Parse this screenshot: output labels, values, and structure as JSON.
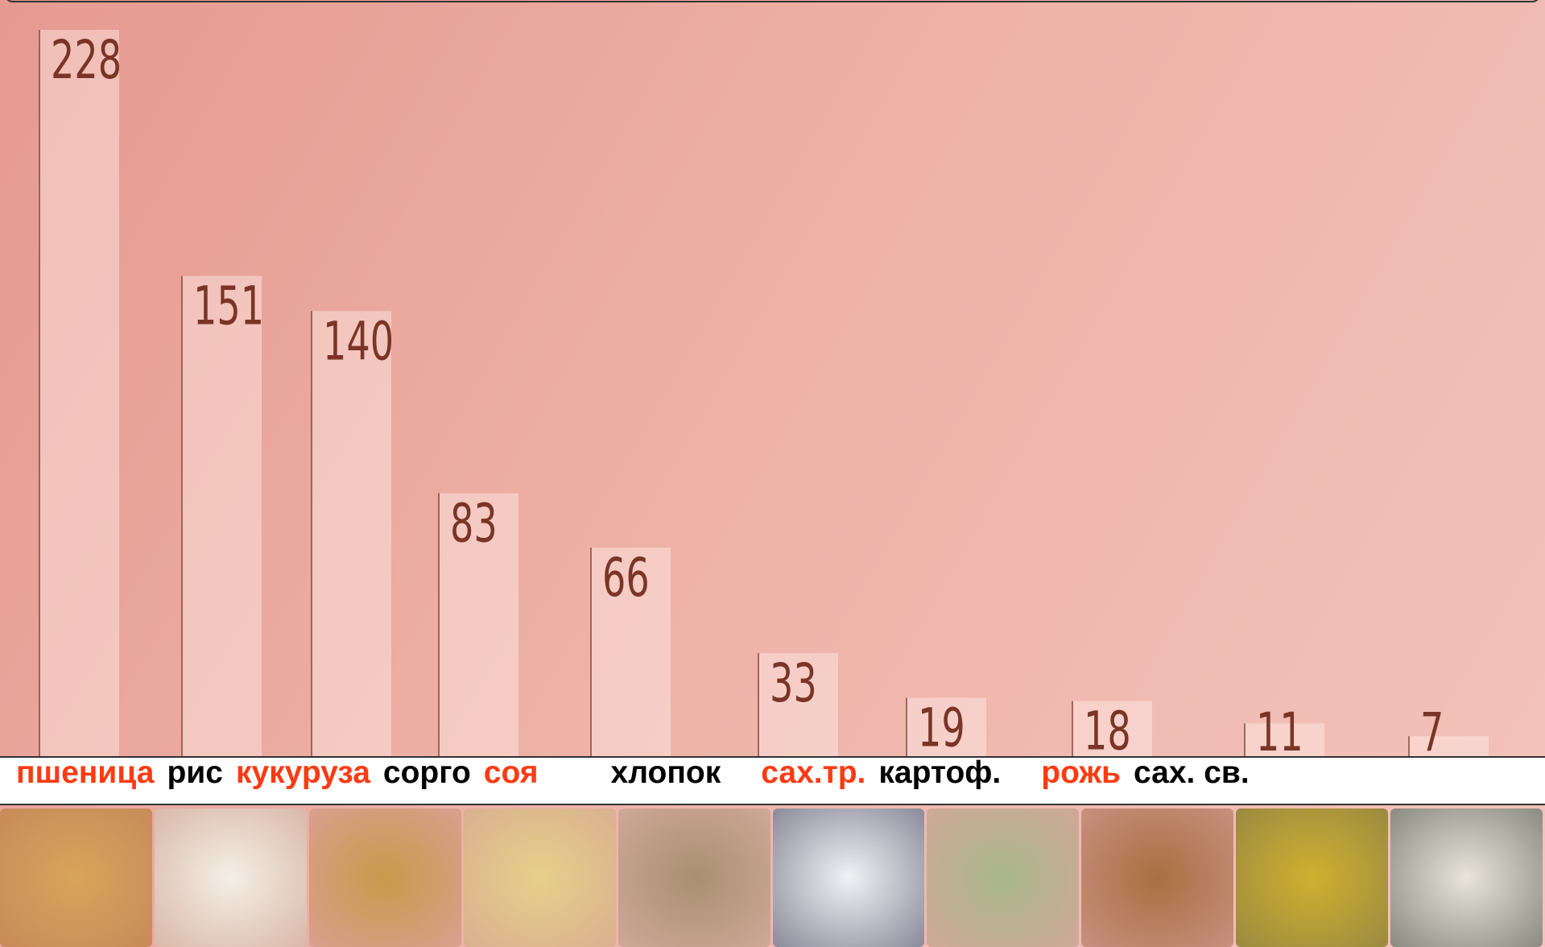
{
  "chart_data": {
    "type": "bar",
    "categories": [
      "пшеница",
      "рис",
      "кукуруза",
      "сорго",
      "соя",
      "хлопок",
      "сах.тр.",
      "картоф.",
      "рожь",
      "сах. св."
    ],
    "values": [
      228,
      151,
      140,
      83,
      66,
      33,
      19,
      18,
      11,
      7
    ],
    "label_colors": [
      "#ff3a12",
      "#000000",
      "#ff3a12",
      "#000000",
      "#ff3a12",
      "#000000",
      "#ff3a12",
      "#000000",
      "#ff3a12",
      "#000000"
    ],
    "value_color": "#7a3526"
  }
}
